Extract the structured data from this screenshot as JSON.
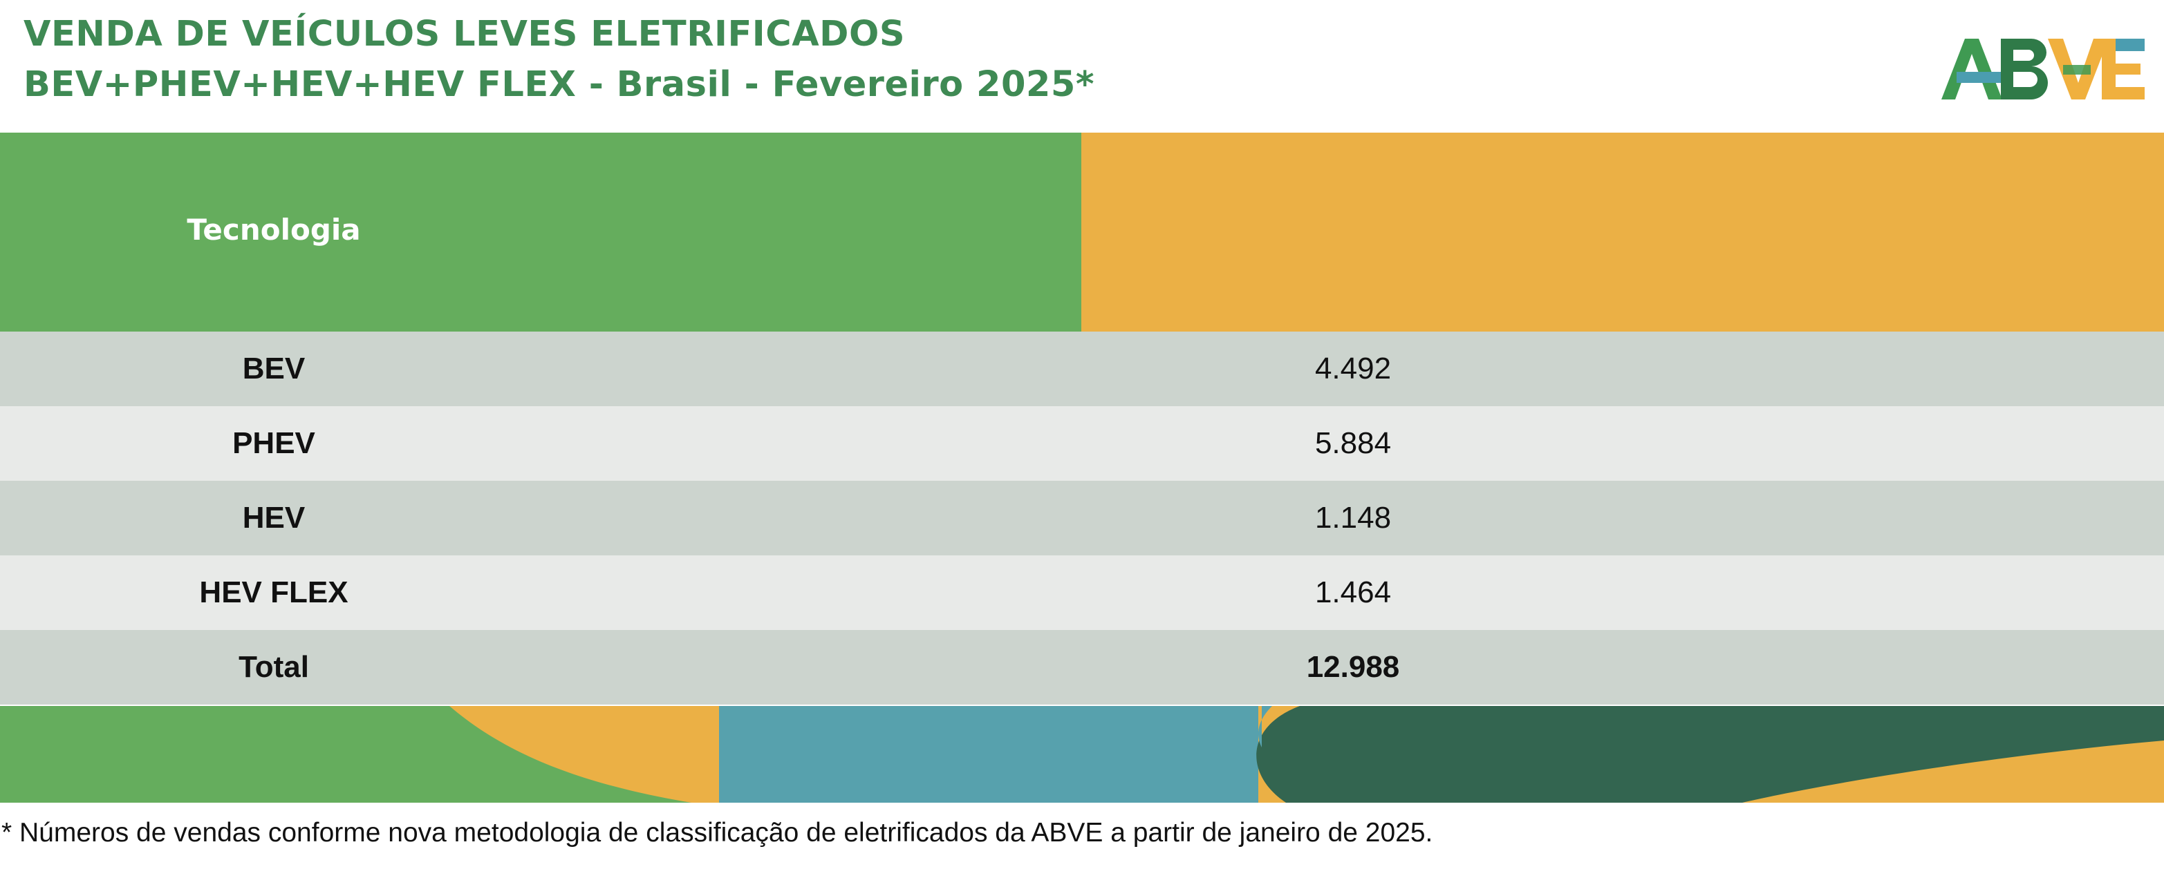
{
  "header": {
    "title_line_1": "VENDA DE VEÍCULOS LEVES ELETRIFICADOS",
    "title_line_2": "BEV+PHEV+HEV+HEV FLEX - Brasil - Fevereiro 2025*"
  },
  "logo": {
    "text": "ABVE",
    "colors": [
      "#3f9a52",
      "#4b9db0",
      "#f0b03e",
      "#2f7a48"
    ]
  },
  "table": {
    "header_label": "Tecnologia",
    "header_value": "",
    "rows": [
      {
        "tech": "BEV",
        "value": "4.492"
      },
      {
        "tech": "PHEV",
        "value": "5.884"
      },
      {
        "tech": "HEV",
        "value": "1.148"
      },
      {
        "tech": "HEV FLEX",
        "value": "1.464"
      }
    ],
    "total": {
      "tech": "Total",
      "value": "12.988"
    }
  },
  "colors": {
    "title_green": "#3f8a54",
    "header_green": "#65ad5d",
    "header_orange": "#ebb045",
    "row_dark": "#ccd4ce",
    "row_light": "#e8eae8",
    "deco_teal": "#57a1ad",
    "deco_dark_green": "#336550"
  },
  "footnote": "* Números de vendas conforme nova metodologia de classificação de eletrificados da ABVE a partir de janeiro de 2025."
}
